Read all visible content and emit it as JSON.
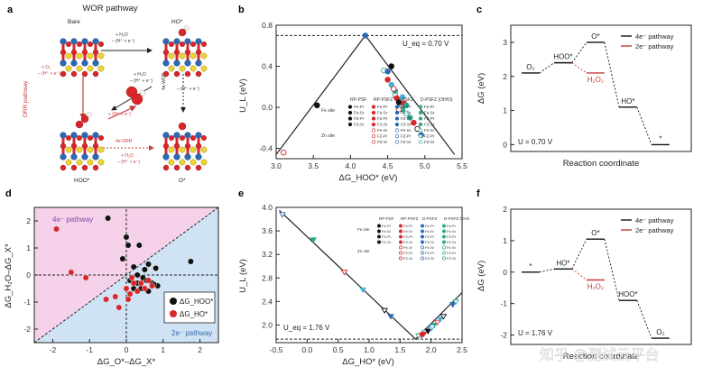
{
  "panels": {
    "a": {
      "letter": "a",
      "title": "WOR pathway",
      "bare": "Bare",
      "ho_star": "HO*",
      "hoo_star": "HOO*",
      "o_star": "O*",
      "orr_pathway": "ORR pathway",
      "step_top": "+ H₂O\n– (H⁺ + e⁻)",
      "step_right": "+ H₂O\n– (H⁺ + e⁻)",
      "step_right2": "– (H⁺ + e⁻)",
      "step_left": "+ O₂\n– (H⁺ + e⁻)",
      "step_mid": "+ (H⁺ + e⁻)",
      "wor_4e": "4e-WOR",
      "orr_4e": "4e-ORR",
      "step_bottom": "+ H₂O\n– (H⁺ + e⁻)"
    },
    "b": {
      "letter": "b",
      "ylabel": "U_L (eV)",
      "xlabel": "ΔG_HOO* (eV)",
      "ueq_label": "U_eq = 0.70 V",
      "xticks": [
        "3.0",
        "3.5",
        "4.0",
        "4.5",
        "5.0",
        "5.5"
      ],
      "yticks": [
        "0.8",
        "0.4",
        "0.0",
        "-0.4"
      ],
      "legend": {
        "headers": [
          "RP-PSF",
          "RP-PSFZ",
          "D-PSFZ",
          "D-PSFZ (OH/O)"
        ],
        "fe_site": "Fe site",
        "zn_site": "Zn site",
        "rows": [
          "Fe-Pr",
          "Fe-Sr",
          "FZ-Pr",
          "FZ-Sr",
          "Fe-Sr",
          "FZ-Pr",
          "FZ-Sr"
        ]
      }
    },
    "c": {
      "letter": "c",
      "ylabel": "ΔG (eV)",
      "xlabel": "Reaction coordinate",
      "yticks": [
        "3",
        "2",
        "1",
        "0"
      ],
      "legend": [
        "4e⁻ pathway",
        "2e⁻ pathway"
      ],
      "states": [
        "O₂",
        "HOO*",
        "O*",
        "HO*",
        "*"
      ],
      "h2o2": "H₂O₂",
      "u_label": "U = 0.70 V"
    },
    "d": {
      "letter": "d",
      "ylabel": "ΔG_H₂O–ΔG_X*",
      "xlabel": "ΔG_O*–ΔG_X*",
      "xticks": [
        "-2",
        "-1",
        "0",
        "1",
        "2"
      ],
      "yticks": [
        "2",
        "1",
        "0",
        "-1",
        "-2"
      ],
      "region_4e": "4e⁻ pathway",
      "region_2e": "2e⁻ pathway",
      "legend": [
        "ΔG_HOO*",
        "ΔG_HO*"
      ]
    },
    "e": {
      "letter": "e",
      "ylabel": "U_L (eV)",
      "xlabel": "ΔG_HO* (eV)",
      "ueq_label": "U_eq = 1.76 V",
      "xticks": [
        "-0.5",
        "0.0",
        "0.5",
        "1.0",
        "1.5",
        "2.0",
        "2.5"
      ],
      "yticks": [
        "4.0",
        "3.6",
        "3.2",
        "2.8",
        "2.4",
        "2.0"
      ]
    },
    "f": {
      "letter": "f",
      "ylabel": "ΔG (eV)",
      "xlabel": "Reaction coordinate",
      "yticks": [
        "2",
        "1",
        "0",
        "-1",
        "-2"
      ],
      "legend": [
        "4e⁻ pathway",
        "2e⁻ pathway"
      ],
      "states": [
        "*",
        "HO*",
        "O*",
        "HOO*",
        "O₂"
      ],
      "h2o2": "H₂O₂",
      "u_label": "U = 1.76 V"
    }
  },
  "watermark": "知乎 @测试云平台",
  "chart_data": [
    {
      "type": "line",
      "panel": "b",
      "xlim": [
        3.0,
        5.5
      ],
      "ylim": [
        -0.5,
        0.8
      ],
      "series": [
        {
          "name": "limit",
          "x": [
            3.0,
            4.2,
            5.4
          ],
          "y": [
            -0.46,
            0.7,
            -0.46
          ]
        },
        {
          "name": "U_eq",
          "x": [
            3.0,
            5.5
          ],
          "y": [
            0.7,
            0.7
          ]
        }
      ],
      "points": [
        [
          3.1,
          -0.44
        ],
        [
          3.55,
          0.02
        ],
        [
          4.2,
          0.7
        ],
        [
          4.45,
          0.36
        ],
        [
          4.5,
          0.27
        ],
        [
          4.55,
          0.22
        ],
        [
          4.6,
          0.12
        ],
        [
          4.62,
          0.09
        ],
        [
          4.65,
          0.05
        ],
        [
          4.68,
          0.0
        ],
        [
          4.7,
          -0.02
        ],
        [
          4.72,
          0.04
        ],
        [
          4.75,
          -0.06
        ],
        [
          4.8,
          -0.1
        ],
        [
          4.85,
          -0.15
        ],
        [
          4.9,
          -0.21
        ],
        [
          4.95,
          -0.27
        ],
        [
          4.6,
          0.16
        ],
        [
          4.58,
          0.18
        ],
        [
          4.7,
          0.1
        ],
        [
          4.75,
          0.02
        ],
        [
          4.65,
          -0.02
        ],
        [
          4.55,
          0.4
        ],
        [
          4.5,
          0.35
        ]
      ]
    },
    {
      "type": "line",
      "panel": "c",
      "ylim": [
        -0.2,
        3.5
      ],
      "series": [
        {
          "name": "4e⁻ pathway",
          "states": [
            "O₂",
            "HOO*",
            "O*",
            "HO*",
            "*"
          ],
          "values": [
            2.1,
            2.4,
            3.0,
            1.1,
            0.0
          ]
        },
        {
          "name": "2e⁻ pathway",
          "states": [
            "HOO*",
            "H₂O₂"
          ],
          "values": [
            2.4,
            2.1
          ]
        }
      ]
    },
    {
      "type": "scatter",
      "panel": "d",
      "xlim": [
        -2.5,
        2.5
      ],
      "ylim": [
        -2.5,
        2.5
      ],
      "series": [
        {
          "name": "ΔG_HOO*",
          "points": [
            [
              -0.5,
              2.1
            ],
            [
              0.0,
              1.4
            ],
            [
              0.05,
              1.1
            ],
            [
              -0.1,
              0.6
            ],
            [
              0.35,
              1.1
            ],
            [
              1.75,
              0.5
            ],
            [
              0.2,
              0.3
            ],
            [
              0.5,
              0.2
            ],
            [
              0.6,
              0.4
            ],
            [
              0.8,
              0.25
            ],
            [
              0.3,
              0.0
            ],
            [
              0.45,
              -0.1
            ],
            [
              0.55,
              -0.2
            ],
            [
              0.7,
              -0.3
            ],
            [
              0.85,
              -0.4
            ],
            [
              0.2,
              -0.5
            ],
            [
              0.4,
              -0.5
            ],
            [
              0.6,
              -0.6
            ],
            [
              0.75,
              -0.35
            ],
            [
              0.1,
              -0.2
            ],
            [
              0.3,
              -0.3
            ]
          ]
        },
        {
          "name": "ΔG_HO*",
          "points": [
            [
              -1.9,
              1.7
            ],
            [
              -1.5,
              0.1
            ],
            [
              -1.1,
              -0.1
            ],
            [
              -0.55,
              -0.9
            ],
            [
              -0.2,
              -1.2
            ],
            [
              -0.3,
              -0.8
            ],
            [
              0.0,
              -0.5
            ],
            [
              0.1,
              -0.7
            ],
            [
              0.2,
              -0.3
            ],
            [
              0.3,
              -0.6
            ],
            [
              0.4,
              -0.3
            ],
            [
              0.5,
              -0.5
            ],
            [
              0.6,
              -0.2
            ],
            [
              0.7,
              -0.4
            ],
            [
              0.15,
              -0.1
            ],
            [
              0.05,
              -0.9
            ]
          ]
        }
      ]
    },
    {
      "type": "line",
      "panel": "e",
      "xlim": [
        -0.5,
        2.5
      ],
      "ylim": [
        1.7,
        4.0
      ],
      "series": [
        {
          "name": "limit",
          "x": [
            -0.45,
            1.75,
            2.5
          ],
          "y": [
            3.95,
            1.76,
            2.55
          ]
        },
        {
          "name": "U_eq",
          "x": [
            -0.5,
            2.5
          ],
          "y": [
            1.76,
            1.76
          ]
        }
      ],
      "points": [
        [
          -0.4,
          3.88
        ],
        [
          0.1,
          3.45
        ],
        [
          0.6,
          2.9
        ],
        [
          0.9,
          2.6
        ],
        [
          1.25,
          2.25
        ],
        [
          1.35,
          2.15
        ],
        [
          1.8,
          1.82
        ],
        [
          1.85,
          1.83
        ],
        [
          1.9,
          1.88
        ],
        [
          1.95,
          1.9
        ],
        [
          2.0,
          1.95
        ],
        [
          2.05,
          2.0
        ],
        [
          2.1,
          2.05
        ],
        [
          2.15,
          2.1
        ],
        [
          2.2,
          2.15
        ],
        [
          2.35,
          2.35
        ],
        [
          2.4,
          2.4
        ],
        [
          1.88,
          1.85
        ],
        [
          2.02,
          1.97
        ]
      ]
    },
    {
      "type": "line",
      "panel": "f",
      "ylim": [
        -2.3,
        2.0
      ],
      "series": [
        {
          "name": "4e⁻ pathway",
          "states": [
            "*",
            "HO*",
            "O*",
            "HOO*",
            "O₂"
          ],
          "values": [
            0.0,
            0.1,
            1.05,
            -0.9,
            -2.1
          ]
        },
        {
          "name": "2e⁻ pathway",
          "states": [
            "HO*",
            "H₂O₂"
          ],
          "values": [
            0.1,
            -0.25
          ]
        }
      ]
    }
  ]
}
